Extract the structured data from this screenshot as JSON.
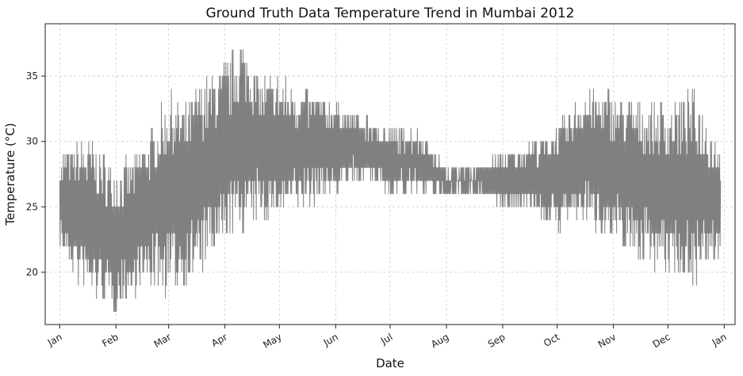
{
  "chart_data": {
    "type": "line",
    "title": "Ground Truth Data Temperature Trend in Mumbai 2012",
    "xlabel": "Date",
    "ylabel": "Temperature (°C)",
    "x_range": [
      "2011-12-24",
      "2013-01-07"
    ],
    "ylim": [
      16,
      39
    ],
    "y_ticks": [
      20,
      25,
      30,
      35
    ],
    "x_ticks": [
      {
        "date": "2012-01-01",
        "label": "Jan"
      },
      {
        "date": "2012-02-01",
        "label": "Feb"
      },
      {
        "date": "2012-03-01",
        "label": "Mar"
      },
      {
        "date": "2012-04-01",
        "label": "Apr"
      },
      {
        "date": "2012-05-01",
        "label": "May"
      },
      {
        "date": "2012-06-01",
        "label": "Jun"
      },
      {
        "date": "2012-07-01",
        "label": "Jul"
      },
      {
        "date": "2012-08-01",
        "label": "Aug"
      },
      {
        "date": "2012-09-01",
        "label": "Sep"
      },
      {
        "date": "2012-10-01",
        "label": "Oct"
      },
      {
        "date": "2012-11-01",
        "label": "Nov"
      },
      {
        "date": "2012-12-01",
        "label": "Dec"
      },
      {
        "date": "2013-01-01",
        "label": "Jan"
      }
    ],
    "grid": true,
    "line_color": "#808080",
    "series": [
      {
        "x_start": "2012-01-01",
        "x_end": "2012-12-30",
        "frequency": "hourly",
        "envelope": [
          {
            "date": "2012-01-01",
            "min": 22,
            "max": 29
          },
          {
            "date": "2012-01-10",
            "min": 19,
            "max": 30
          },
          {
            "date": "2012-01-20",
            "min": 18,
            "max": 30
          },
          {
            "date": "2012-02-01",
            "min": 17,
            "max": 28
          },
          {
            "date": "2012-02-10",
            "min": 18,
            "max": 29
          },
          {
            "date": "2012-02-20",
            "min": 19,
            "max": 31
          },
          {
            "date": "2012-03-01",
            "min": 18,
            "max": 34
          },
          {
            "date": "2012-03-10",
            "min": 19,
            "max": 33
          },
          {
            "date": "2012-03-20",
            "min": 20,
            "max": 35
          },
          {
            "date": "2012-04-01",
            "min": 22,
            "max": 36
          },
          {
            "date": "2012-04-10",
            "min": 23,
            "max": 38
          },
          {
            "date": "2012-04-20",
            "min": 24,
            "max": 35
          },
          {
            "date": "2012-05-01",
            "min": 24,
            "max": 35
          },
          {
            "date": "2012-05-15",
            "min": 25,
            "max": 34
          },
          {
            "date": "2012-06-01",
            "min": 26,
            "max": 33
          },
          {
            "date": "2012-06-15",
            "min": 27,
            "max": 32
          },
          {
            "date": "2012-07-01",
            "min": 26,
            "max": 31
          },
          {
            "date": "2012-07-15",
            "min": 26,
            "max": 31
          },
          {
            "date": "2012-08-01",
            "min": 26,
            "max": 28
          },
          {
            "date": "2012-08-15",
            "min": 26,
            "max": 28
          },
          {
            "date": "2012-09-01",
            "min": 25,
            "max": 29
          },
          {
            "date": "2012-09-15",
            "min": 25,
            "max": 30
          },
          {
            "date": "2012-10-01",
            "min": 23,
            "max": 31
          },
          {
            "date": "2012-10-15",
            "min": 24,
            "max": 34
          },
          {
            "date": "2012-11-01",
            "min": 22,
            "max": 34
          },
          {
            "date": "2012-11-15",
            "min": 21,
            "max": 33
          },
          {
            "date": "2012-12-01",
            "min": 20,
            "max": 33
          },
          {
            "date": "2012-12-15",
            "min": 19,
            "max": 34
          },
          {
            "date": "2012-12-30",
            "min": 21,
            "max": 30
          }
        ]
      }
    ]
  }
}
